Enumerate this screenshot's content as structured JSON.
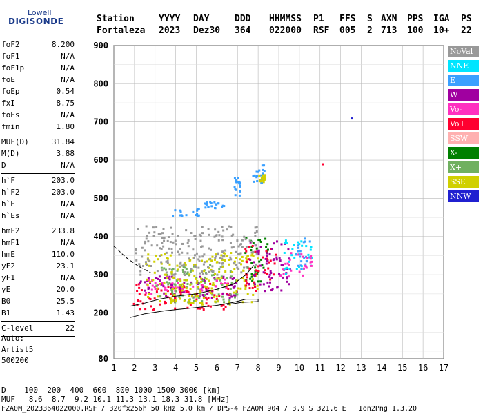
{
  "logo": {
    "line1": "Lowell",
    "line2": "DIGISONDE"
  },
  "header": {
    "labels": [
      "Station",
      "YYYY",
      "DAY",
      "DDD",
      "HHMMSS",
      "P1",
      "FFS",
      "S",
      "AXN",
      "PPS",
      "IGA",
      "PS"
    ],
    "values": [
      "Fortaleza",
      "2023",
      "Dez30",
      "364",
      "022000",
      "RSF",
      "005",
      "2",
      "713",
      "100",
      "10+",
      "22"
    ]
  },
  "params": {
    "group1": [
      {
        "k": "foF2",
        "v": "8.200"
      },
      {
        "k": "foF1",
        "v": "N/A"
      },
      {
        "k": "foF1p",
        "v": "N/A"
      },
      {
        "k": "foE",
        "v": "N/A"
      },
      {
        "k": "foEp",
        "v": "0.54"
      },
      {
        "k": "fxI",
        "v": "8.75"
      },
      {
        "k": "foEs",
        "v": "N/A"
      },
      {
        "k": "fmin",
        "v": "1.80"
      }
    ],
    "group2": [
      {
        "k": "MUF(D)",
        "v": "31.84"
      },
      {
        "k": "M(D)",
        "v": "3.88"
      },
      {
        "k": "D",
        "v": "N/A"
      }
    ],
    "group3": [
      {
        "k": "h`F",
        "v": "203.0"
      },
      {
        "k": "h`F2",
        "v": "203.0"
      },
      {
        "k": "h`E",
        "v": "N/A"
      },
      {
        "k": "h`Es",
        "v": "N/A"
      }
    ],
    "group4": [
      {
        "k": "hmF2",
        "v": "233.8"
      },
      {
        "k": "hmF1",
        "v": "N/A"
      },
      {
        "k": "hmE",
        "v": "110.0"
      },
      {
        "k": "yF2",
        "v": "23.1"
      },
      {
        "k": "yF1",
        "v": "N/A"
      },
      {
        "k": "yE",
        "v": "20.0"
      },
      {
        "k": "B0",
        "v": "25.5"
      },
      {
        "k": "B1",
        "v": "1.43"
      }
    ],
    "group5": [
      {
        "k": "C-level",
        "v": "22"
      }
    ]
  },
  "auto": {
    "line1": "Auto:",
    "line2": "Artist5",
    "line3": "500200"
  },
  "legend": [
    {
      "label": "NoVal",
      "color": "#999999"
    },
    {
      "label": "NNE",
      "color": "#00e5ff"
    },
    {
      "label": "E",
      "color": "#3aa0ff"
    },
    {
      "label": "W",
      "color": "#a000a0"
    },
    {
      "label": "Vo-",
      "color": "#ff30c0"
    },
    {
      "label": "Vo+",
      "color": "#ff0030"
    },
    {
      "label": "SSW",
      "color": "#ffb0b0"
    },
    {
      "label": "X-",
      "color": "#008000"
    },
    {
      "label": "X+",
      "color": "#70b060"
    },
    {
      "label": "SSE",
      "color": "#d0d000"
    },
    {
      "label": "NNW",
      "color": "#2020d0"
    }
  ],
  "bottom": {
    "line1": "D    100  200  400  600  800 1000 1500 3000 [km]",
    "line2": "MUF   8.6  8.7  9.2 10.1 11.3 13.1 18.3 31.8 [MHz]",
    "line3": "FZA0M_2023364022000.RSF / 320fx256h 50 kHz 5.0 km / DPS-4 FZA0M 904 / 3.9 S 321.6 E   Ion2Png 1.3.20"
  },
  "chart_data": {
    "type": "scatter",
    "xlim": [
      1,
      17
    ],
    "ylim": [
      80,
      900
    ],
    "x_ticks": [
      1,
      2,
      3,
      4,
      5,
      6,
      7,
      8,
      9,
      10,
      11,
      12,
      13,
      14,
      15,
      16,
      17
    ],
    "y_ticks": [
      80,
      200,
      300,
      400,
      500,
      600,
      700,
      800,
      900
    ],
    "grid": true,
    "traces": [
      {
        "name": "lower",
        "points": [
          [
            1.8,
            188
          ],
          [
            2.5,
            198
          ],
          [
            3.5,
            206
          ],
          [
            5,
            214
          ],
          [
            6,
            220
          ],
          [
            6.8,
            228
          ],
          [
            7.4,
            236
          ],
          [
            8.0,
            236
          ],
          [
            8.0,
            230
          ],
          [
            7.2,
            228
          ],
          [
            6.5,
            222
          ]
        ]
      },
      {
        "name": "upper",
        "points": [
          [
            1.8,
            218
          ],
          [
            2.5,
            226
          ],
          [
            3.2,
            236
          ],
          [
            4,
            244
          ],
          [
            5,
            250
          ],
          [
            6,
            262
          ],
          [
            6.8,
            276
          ],
          [
            7.4,
            300
          ],
          [
            7.8,
            325
          ]
        ]
      },
      {
        "name": "dashed",
        "points": [
          [
            1.0,
            375
          ],
          [
            1.6,
            345
          ],
          [
            2.2,
            322
          ],
          [
            2.8,
            305
          ]
        ]
      }
    ],
    "isolated_points": [
      {
        "x": 12.5,
        "y": 712,
        "mode": "NNW"
      },
      {
        "x": 11.1,
        "y": 592,
        "mode": "Vo+"
      }
    ],
    "clusters": [
      {
        "mode": "E",
        "x": [
          3.8,
          5.1
        ],
        "y": [
          455,
          475
        ]
      },
      {
        "mode": "E",
        "x": [
          5.3,
          6.3
        ],
        "y": [
          475,
          500
        ]
      },
      {
        "mode": "E",
        "x": [
          7.7,
          8.3
        ],
        "y": [
          540,
          590
        ]
      },
      {
        "mode": "E",
        "x": [
          6.8,
          7.1
        ],
        "y": [
          510,
          560
        ]
      },
      {
        "mode": "SSE",
        "x": [
          8.0,
          8.3
        ],
        "y": [
          545,
          565
        ]
      },
      {
        "mode": "Vo+",
        "x": [
          1.9,
          6.8
        ],
        "y": [
          210,
          280
        ]
      },
      {
        "mode": "Vo-",
        "x": [
          2.5,
          6.5
        ],
        "y": [
          250,
          300
        ]
      },
      {
        "mode": "W",
        "x": [
          2.2,
          7.0
        ],
        "y": [
          235,
          300
        ]
      },
      {
        "mode": "X+",
        "x": [
          3.0,
          7.0
        ],
        "y": [
          230,
          330
        ]
      },
      {
        "mode": "SSE",
        "x": [
          2.5,
          8.0
        ],
        "y": [
          225,
          360
        ]
      },
      {
        "mode": "X-",
        "x": [
          7.3,
          8.5
        ],
        "y": [
          280,
          400
        ]
      },
      {
        "mode": "Vo+",
        "x": [
          7.3,
          8.8
        ],
        "y": [
          260,
          380
        ]
      },
      {
        "mode": "W",
        "x": [
          7.5,
          9.5
        ],
        "y": [
          260,
          390
        ]
      },
      {
        "mode": "NNE",
        "x": [
          9.2,
          10.6
        ],
        "y": [
          305,
          395
        ]
      },
      {
        "mode": "E",
        "x": [
          9.8,
          10.5
        ],
        "y": [
          310,
          400
        ]
      },
      {
        "mode": "Vo-",
        "x": [
          9.0,
          10.6
        ],
        "y": [
          295,
          360
        ]
      },
      {
        "mode": "NoVal",
        "x": [
          2.0,
          8.0
        ],
        "y": [
          300,
          430
        ]
      }
    ]
  }
}
